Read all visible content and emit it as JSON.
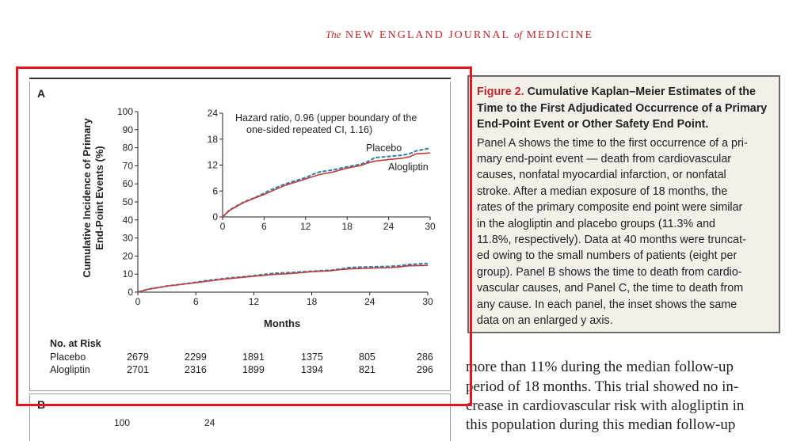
{
  "masthead": {
    "the": "The",
    "title1": "NEW ENGLAND JOURNAL",
    "of": "of",
    "title2": "MEDICINE"
  },
  "panel_a": {
    "label": "A"
  },
  "panel_b": {
    "label": "B",
    "y_tick_top": "100",
    "inset_y_tick_top": "24"
  },
  "chart_data": {
    "type": "line",
    "title": "",
    "xlabel": "Months",
    "ylabel_lines": [
      "Cumulative Incidence of Primary",
      "End-Point Events (%)"
    ],
    "xlim": [
      0,
      30
    ],
    "ylim": [
      0,
      100
    ],
    "x_ticks": [
      "0",
      "6",
      "12",
      "18",
      "24",
      "30"
    ],
    "y_ticks": [
      "0",
      "10",
      "20",
      "30",
      "40",
      "50",
      "60",
      "70",
      "80",
      "90",
      "100"
    ],
    "inset": {
      "xlim": [
        0,
        30
      ],
      "ylim": [
        0,
        24
      ],
      "x_ticks": [
        "0",
        "6",
        "12",
        "18",
        "24",
        "30"
      ],
      "y_ticks": [
        "0",
        "6",
        "12",
        "18",
        "24"
      ],
      "annotation_lines": [
        "Hazard ratio, 0.96 (upper boundary of the",
        "one-sided repeated CI, 1.16)"
      ]
    },
    "series": [
      {
        "name": "Placebo",
        "color": "#2b7fa8",
        "style": "dashed",
        "x": [
          0,
          1,
          3,
          5,
          6,
          7,
          9,
          12,
          13,
          14,
          16,
          18,
          20,
          21,
          22,
          24,
          26,
          27,
          28,
          30
        ],
        "y": [
          0,
          1.6,
          3.4,
          4.7,
          5.5,
          6.3,
          7.6,
          9.1,
          9.8,
          10.4,
          10.9,
          11.6,
          12.2,
          12.8,
          13.7,
          14.0,
          14.3,
          14.6,
          15.3,
          15.9
        ]
      },
      {
        "name": "Alogliptin",
        "color": "#c23b3b",
        "style": "solid",
        "x": [
          0,
          1,
          3,
          5,
          6,
          7,
          9,
          12,
          13,
          14,
          16,
          18,
          20,
          21,
          22,
          24,
          26,
          27,
          28,
          30
        ],
        "y": [
          0,
          1.5,
          3.3,
          4.6,
          5.2,
          5.9,
          7.3,
          8.8,
          9.3,
          9.8,
          10.4,
          11.3,
          11.9,
          12.5,
          12.9,
          13.3,
          13.6,
          13.9,
          14.6,
          14.8
        ]
      }
    ],
    "risk_table": {
      "title": "No. at Risk",
      "rows": [
        {
          "name": "Placebo",
          "values": [
            "2679",
            "2299",
            "1891",
            "1375",
            "805",
            "286"
          ]
        },
        {
          "name": "Alogliptin",
          "values": [
            "2701",
            "2316",
            "1899",
            "1394",
            "821",
            "296"
          ]
        }
      ]
    }
  },
  "caption": {
    "fig": "Figure 2.",
    "title_lines": [
      "Cumulative Kaplan–Meier Estimates of the",
      "Time to the First Adjudicated Occurrence of a Primary",
      "End-Point Event or Other Safety End Point."
    ],
    "body_lines": [
      "Panel A shows the time to the first occurrence of a pri-",
      "mary end-point event — death from cardiovascular",
      "causes, nonfatal myocardial infarction, or nonfatal",
      "stroke. After a median exposure of 18 months, the",
      "rates of the primary composite end point were similar",
      "in the alogliptin and placebo groups (11.3% and",
      "11.8%, respectively). Data at 40 months were truncat-",
      "ed owing to the small numbers of patients (eight per",
      "group). Panel B shows the time to death from cardio-",
      "vascular causes, and Panel C, the time to death from",
      "any cause. In each panel, the inset shows the same",
      "data on an enlarged y axis."
    ]
  },
  "body_text": [
    "more than 11% during the median follow-up",
    "period of 18 months. This trial showed no in-",
    "crease in cardiovascular risk with alogliptin in",
    "this population during this median follow-up"
  ]
}
